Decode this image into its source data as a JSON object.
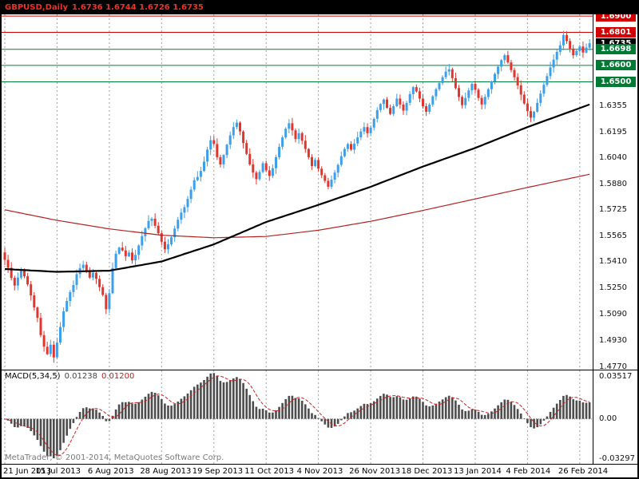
{
  "header": {
    "title": "GBPUSD,Daily",
    "ohlc": "1.6736 1.6744 1.6726 1.6735"
  },
  "colors": {
    "up_candle": "#3d9fe8",
    "down_candle": "#e2352e",
    "ma_fast_black": "#000000",
    "ma_slow_red": "#b22222",
    "resistance_line": "#d40000",
    "support_line": "#008037",
    "grid": "#9e9e9e",
    "histogram": "#4d4d4d",
    "signal_line": "#cc2222",
    "badge_red": "#d40000",
    "badge_black": "#000000",
    "badge_green": "#007a33",
    "title_text": "#ee3124"
  },
  "price_axis": {
    "ticks": [
      "1.6355",
      "1.6195",
      "1.6040",
      "1.5880",
      "1.5725",
      "1.5565",
      "1.5410",
      "1.5250",
      "1.5090",
      "1.4930",
      "1.4770"
    ],
    "tick_values": [
      1.6355,
      1.6195,
      1.604,
      1.588,
      1.5725,
      1.5565,
      1.541,
      1.525,
      1.509,
      1.493,
      1.477
    ],
    "boxes": [
      {
        "label": "1.6900",
        "value": 1.69,
        "bg_key": "badge_red"
      },
      {
        "label": "1.6801",
        "value": 1.6801,
        "bg_key": "badge_red"
      },
      {
        "label": "1.6735",
        "value": 1.6735,
        "bg_key": "badge_black"
      },
      {
        "label": "1.6698",
        "value": 1.6698,
        "bg_key": "badge_green"
      },
      {
        "label": "1.6600",
        "value": 1.66,
        "bg_key": "badge_green"
      },
      {
        "label": "1.6500",
        "value": 1.65,
        "bg_key": "badge_green"
      }
    ]
  },
  "chart_data": {
    "type": "candlestick",
    "title": "GBPUSD Daily",
    "x_labels": [
      "21 Jun 2013",
      "15 Jul 2013",
      "6 Aug 2013",
      "28 Aug 2013",
      "19 Sep 2013",
      "11 Oct 2013",
      "4 Nov 2013",
      "26 Nov 2013",
      "18 Dec 2013",
      "13 Jan 2014",
      "4 Feb 2014",
      "26 Feb 2014"
    ],
    "label_indices": [
      0,
      16,
      32,
      48,
      64,
      80,
      96,
      112,
      128,
      144,
      160,
      176
    ],
    "y_top": 1.691,
    "y_bottom": 1.477,
    "current_price": 1.6735,
    "closes": [
      1.5418,
      1.537,
      1.5308,
      1.5262,
      1.531,
      1.5352,
      1.5318,
      1.5269,
      1.5202,
      1.5128,
      1.5065,
      1.496,
      1.489,
      1.4845,
      1.4902,
      1.4825,
      1.4915,
      1.501,
      1.5105,
      1.5168,
      1.5222,
      1.5265,
      1.5331,
      1.5368,
      1.5388,
      1.5352,
      1.531,
      1.5338,
      1.5302,
      1.5252,
      1.5205,
      1.5118,
      1.5215,
      1.5368,
      1.5455,
      1.5492,
      1.5475,
      1.544,
      1.5462,
      1.5415,
      1.5448,
      1.5505,
      1.5562,
      1.561,
      1.5655,
      1.5668,
      1.5625,
      1.558,
      1.5528,
      1.5482,
      1.5512,
      1.5555,
      1.5608,
      1.5662,
      1.5705,
      1.5738,
      1.5788,
      1.5845,
      1.5902,
      1.5922,
      1.5958,
      1.6015,
      1.6088,
      1.6145,
      1.6122,
      1.6042,
      1.5998,
      1.6055,
      1.6118,
      1.6175,
      1.6225,
      1.6252,
      1.6198,
      1.6128,
      1.6062,
      1.5998,
      1.5948,
      1.5908,
      1.5952,
      1.6005,
      1.5962,
      1.5928,
      1.5975,
      1.6042,
      1.6105,
      1.6162,
      1.6215,
      1.6248,
      1.6205,
      1.6152,
      1.6188,
      1.6142,
      1.6092,
      1.6042,
      1.5988,
      1.6025,
      1.5972,
      1.5932,
      1.5898,
      1.5862,
      1.5905,
      1.5948,
      1.5995,
      1.6048,
      1.6092,
      1.6122,
      1.6088,
      1.6125,
      1.6162,
      1.6198,
      1.6225,
      1.6188,
      1.6222,
      1.6275,
      1.6328,
      1.6365,
      1.6392,
      1.6342,
      1.6305,
      1.6352,
      1.6398,
      1.6362,
      1.6325,
      1.6372,
      1.6425,
      1.6468,
      1.6442,
      1.6398,
      1.6352,
      1.6318,
      1.6362,
      1.6412,
      1.6455,
      1.6492,
      1.6528,
      1.6562,
      1.6575,
      1.6522,
      1.6462,
      1.6408,
      1.6358,
      1.6402,
      1.6448,
      1.6488,
      1.6452,
      1.6402,
      1.6362,
      1.6408,
      1.6455,
      1.6502,
      1.6548,
      1.6592,
      1.6632,
      1.6662,
      1.6618,
      1.6572,
      1.6528,
      1.6478,
      1.6422,
      1.6368,
      1.6322,
      1.6282,
      1.6318,
      1.6372,
      1.6428,
      1.6482,
      1.6535,
      1.6588,
      1.6635,
      1.6682,
      1.6722,
      1.6785,
      1.6748,
      1.6702,
      1.6662,
      1.6688,
      1.6715,
      1.6678,
      1.6708,
      1.6735
    ],
    "hlines": [
      {
        "value": 1.69,
        "color_key": "resistance_line"
      },
      {
        "value": 1.6801,
        "color_key": "resistance_line"
      },
      {
        "value": 1.6698,
        "color_key": "support_line"
      },
      {
        "value": 1.66,
        "color_key": "support_line"
      },
      {
        "value": 1.65,
        "color_key": "support_line"
      }
    ],
    "ma_anchors_i": [
      0,
      16,
      32,
      48,
      64,
      80,
      96,
      112,
      128,
      144,
      160,
      179
    ],
    "ma_black": [
      1.5362,
      1.5345,
      1.5352,
      1.5408,
      1.5512,
      1.5648,
      1.5752,
      1.5862,
      1.5985,
      1.6098,
      1.6225,
      1.6362
    ],
    "ma_red": [
      1.5722,
      1.5658,
      1.5606,
      1.5568,
      1.5552,
      1.556,
      1.5598,
      1.5652,
      1.5718,
      1.5788,
      1.5858,
      1.5938
    ]
  },
  "macd": {
    "type": "histogram_with_signal",
    "label": "MACD(5,34,5)",
    "value_main": "0.01238",
    "value_signal": "0.01200",
    "params": [
      5,
      34,
      5
    ],
    "axis_labels": [
      "0.03517",
      "0.00",
      "-0.03297"
    ],
    "axis_values": [
      0.03517,
      0,
      -0.03297
    ]
  },
  "footer": {
    "copyright": "MetaTrader, © 2001-2014, MetaQuotes Software Corp."
  }
}
